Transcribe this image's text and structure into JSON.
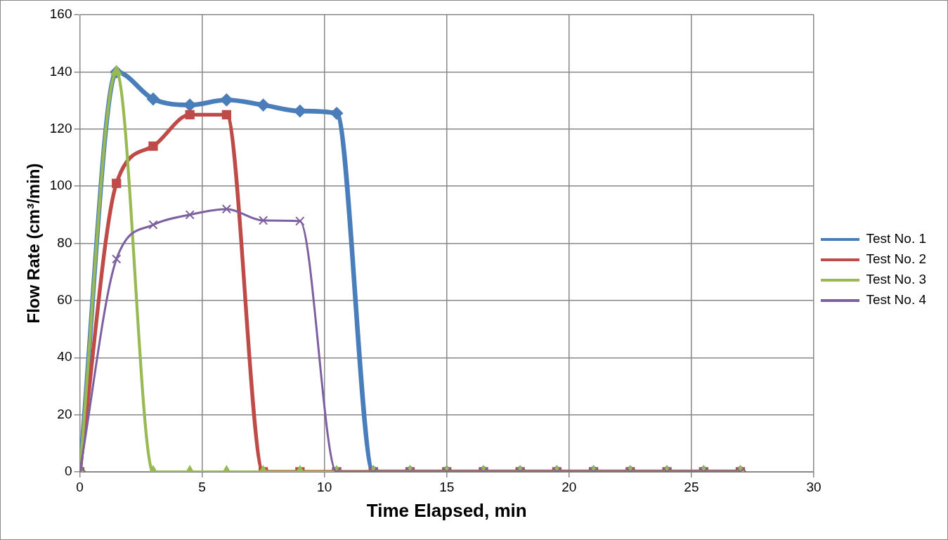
{
  "chart_data": {
    "type": "line",
    "xlabel": "Time Elapsed, min",
    "ylabel": "Flow Rate (cm³/min)",
    "x": [
      0,
      1.5,
      3,
      4.5,
      6,
      7.5,
      9,
      10.5,
      12,
      13.5,
      15,
      16.5,
      18,
      19.5,
      21,
      22.5,
      24,
      25.5,
      27
    ],
    "xlim": [
      0,
      30
    ],
    "xticks": [
      0,
      5,
      10,
      15,
      20,
      25,
      30
    ],
    "ylim": [
      0,
      160
    ],
    "yticks": [
      0,
      20,
      40,
      60,
      80,
      100,
      120,
      140,
      160
    ],
    "grid": true,
    "legend": "right",
    "line_style": "solid",
    "series": [
      {
        "name": "Test No. 1",
        "color": "#4a7ebb",
        "marker": "diamond",
        "values": [
          0,
          140,
          130.5,
          128.4,
          130.2,
          128.4,
          126.3,
          125.5,
          0,
          0,
          0,
          0,
          0,
          0,
          0,
          0,
          0,
          0,
          0
        ]
      },
      {
        "name": "Test No. 2",
        "color": "#be4b48",
        "marker": "square",
        "values": [
          0,
          101,
          114,
          125,
          125,
          0,
          0,
          0,
          0,
          0,
          0,
          0,
          0,
          0,
          0,
          0,
          0,
          0,
          0
        ]
      },
      {
        "name": "Test No. 3",
        "color": "#98b954",
        "marker": "triangle",
        "values": [
          0,
          140,
          0,
          0,
          0,
          0,
          0,
          0,
          0,
          0,
          0,
          0,
          0,
          0,
          0,
          0,
          0,
          0,
          0
        ]
      },
      {
        "name": "Test No. 4",
        "color": "#7d60a0",
        "marker": "cross",
        "values": [
          0,
          74.5,
          86.5,
          90,
          92,
          88,
          87.8,
          0,
          0,
          0,
          0,
          0,
          0,
          0,
          0,
          0,
          0,
          0,
          0
        ]
      }
    ]
  }
}
